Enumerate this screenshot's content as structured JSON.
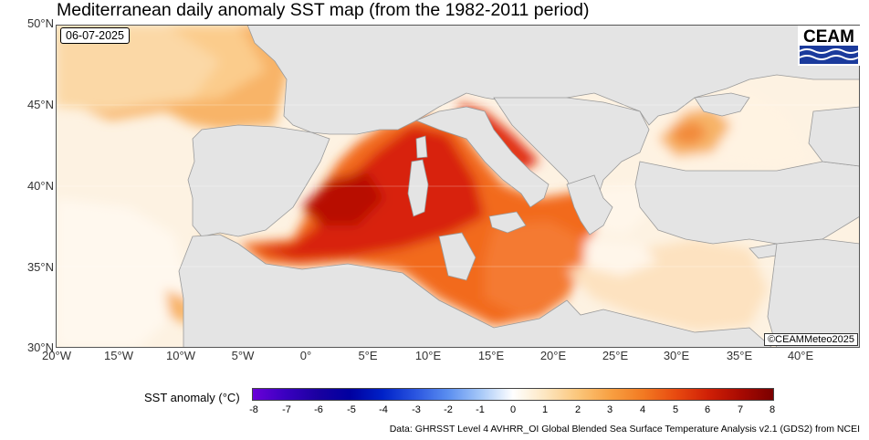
{
  "title": "Mediterranean daily anomaly SST map (from the 1982-2011 period)",
  "date": "06-07-2025",
  "logo_text": "CEAM",
  "copyright": "©CEAMMeteo2025",
  "lat_labels": [
    "50°N",
    "45°N",
    "40°N",
    "35°N",
    "30°N"
  ],
  "lon_labels": [
    "20°W",
    "15°W",
    "10°W",
    "5°W",
    "0°",
    "5°E",
    "10°E",
    "15°E",
    "20°E",
    "25°E",
    "30°E",
    "35°E",
    "40°E"
  ],
  "colorbar": {
    "title": "SST anomaly (°C)",
    "ticks": [
      "-8",
      "-7",
      "-6",
      "-5",
      "-4",
      "-3",
      "-2",
      "-1",
      "0",
      "1",
      "2",
      "3",
      "4",
      "5",
      "6",
      "7",
      "8"
    ],
    "colors": [
      "#6a00d8",
      "#3a00c0",
      "#1a00a0",
      "#0000a0",
      "#0022c8",
      "#2a55e0",
      "#5a8ef0",
      "#a6c8f8",
      "#ffffff",
      "#fde6c0",
      "#fbc67a",
      "#f8a042",
      "#f27a22",
      "#e84a10",
      "#d02006",
      "#a80a02",
      "#7a0000"
    ]
  },
  "source": "Data: GHRSST Level 4 AVHRR_OI Global Blended Sea Surface Temperature Analysis v2.1 (GDS2) from NCEI",
  "colors": {
    "land": "#e4e4e4",
    "land_border": "#888888",
    "hot": "#d8200a",
    "warm": "#f47a30",
    "mild": "#fbc27a",
    "neutral": "#fff6ea"
  }
}
